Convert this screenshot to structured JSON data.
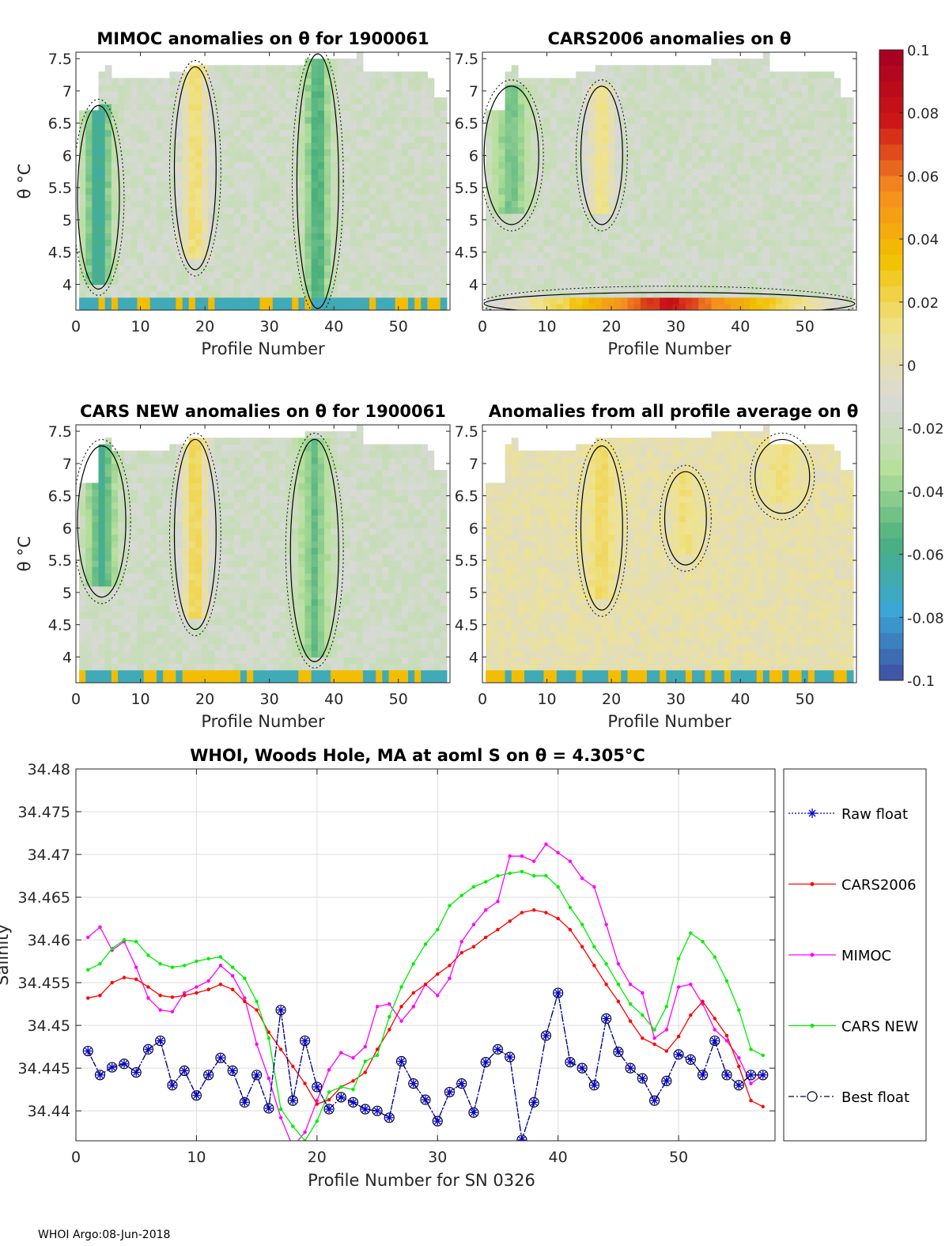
{
  "footer": "WHOI Argo:08-Jun-2018",
  "colorbar": {
    "ticks": [
      "0.1",
      "0.08",
      "0.06",
      "0.04",
      "0.02",
      "0",
      "-0.02",
      "-0.04",
      "-0.06",
      "-0.08",
      "-0.1"
    ],
    "range": [
      -0.1,
      0.1
    ],
    "colors": [
      "#3e4ea1",
      "#3aa7d7",
      "#4bb07c",
      "#b7e09b",
      "#d9d9d9",
      "#efe38c",
      "#f2c100",
      "#f68c1f",
      "#cc1417",
      "#a50021"
    ]
  },
  "chart_data": [
    {
      "type": "heatmap",
      "title": "MIMOC anomalies on θ  for 1900061",
      "xlabel": "Profile Number",
      "ylabel": "θ °C",
      "xlim": [
        0,
        58
      ],
      "ylim": [
        3.6,
        7.6
      ],
      "xticks": [
        "0",
        "10",
        "20",
        "30",
        "40",
        "50"
      ],
      "yticks": [
        "7.5",
        "7",
        "6.5",
        "6",
        "5.5",
        "5",
        "4.5",
        "4"
      ],
      "features": [
        {
          "kind": "negative-band",
          "x": [
            1,
            6
          ],
          "y": [
            4.0,
            6.7
          ],
          "value": -0.07
        },
        {
          "kind": "positive-band",
          "x": [
            16,
            21
          ],
          "y": [
            4.3,
            7.3
          ],
          "value": 0.02
        },
        {
          "kind": "negative-band",
          "x": [
            35,
            40
          ],
          "y": [
            3.7,
            7.5
          ],
          "value": -0.06
        }
      ]
    },
    {
      "type": "heatmap",
      "title": "CARS2006 anomalies on θ",
      "xlabel": "Profile Number",
      "ylabel": "θ °C",
      "xlim": [
        0,
        58
      ],
      "ylim": [
        3.6,
        7.6
      ],
      "xticks": [
        "0",
        "10",
        "20",
        "30",
        "40",
        "50"
      ],
      "yticks": [
        "7.5",
        "7",
        "6.5",
        "6",
        "5.5",
        "5",
        "4.5",
        "4"
      ],
      "features": [
        {
          "kind": "negative-band",
          "x": [
            1,
            8
          ],
          "y": [
            5.0,
            7.0
          ],
          "value": -0.05
        },
        {
          "kind": "positive-band",
          "x": [
            16,
            21
          ],
          "y": [
            5.0,
            7.0
          ],
          "value": 0.015
        },
        {
          "kind": "positive-bottom",
          "x": [
            1,
            57
          ],
          "y": [
            3.6,
            3.8
          ],
          "value": 0.08
        }
      ]
    },
    {
      "type": "heatmap",
      "title": "CARS NEW anomalies on θ for 1900061",
      "xlabel": "Profile Number",
      "ylabel": "θ °C",
      "xlim": [
        0,
        58
      ],
      "ylim": [
        3.6,
        7.6
      ],
      "xticks": [
        "0",
        "10",
        "20",
        "30",
        "40",
        "50"
      ],
      "yticks": [
        "7.5",
        "7",
        "6.5",
        "6",
        "5.5",
        "5",
        "4.5",
        "4"
      ],
      "features": [
        {
          "kind": "negative-band",
          "x": [
            1,
            7
          ],
          "y": [
            5.0,
            7.2
          ],
          "value": -0.06
        },
        {
          "kind": "positive-band",
          "x": [
            16,
            21
          ],
          "y": [
            4.5,
            7.3
          ],
          "value": 0.025
        },
        {
          "kind": "negative-band",
          "x": [
            34,
            40
          ],
          "y": [
            4.0,
            7.3
          ],
          "value": -0.05
        }
      ]
    },
    {
      "type": "heatmap",
      "title": "Anomalies from all profile average on θ",
      "xlabel": "Profile Number",
      "ylabel": "θ °C",
      "xlim": [
        0,
        58
      ],
      "ylim": [
        3.6,
        7.6
      ],
      "xticks": [
        "0",
        "10",
        "20",
        "30",
        "40",
        "50"
      ],
      "yticks": [
        "7.5",
        "7",
        "6.5",
        "6",
        "5.5",
        "5",
        "4.5",
        "4"
      ],
      "features": [
        {
          "kind": "positive-band",
          "x": [
            16,
            21
          ],
          "y": [
            4.8,
            7.2
          ],
          "value": 0.02
        },
        {
          "kind": "positive-band",
          "x": [
            29,
            34
          ],
          "y": [
            5.5,
            6.8
          ],
          "value": 0.015
        },
        {
          "kind": "positive-band",
          "x": [
            43,
            50
          ],
          "y": [
            6.3,
            7.3
          ],
          "value": 0.015
        }
      ]
    },
    {
      "type": "line",
      "title": "WHOI, Woods Hole, MA at aoml S on θ = 4.305°C",
      "xlabel": "Profile Number for SN 0326",
      "ylabel": "Salinity",
      "xlim": [
        0,
        58
      ],
      "ylim": [
        34.4365,
        34.48
      ],
      "xticks": [
        "0",
        "10",
        "20",
        "30",
        "40",
        "50"
      ],
      "yticks": [
        "34.48",
        "34.475",
        "34.47",
        "34.465",
        "34.46",
        "34.455",
        "34.45",
        "34.445",
        "34.44"
      ],
      "x": [
        1,
        2,
        3,
        4,
        5,
        6,
        7,
        8,
        9,
        10,
        11,
        12,
        13,
        14,
        15,
        16,
        17,
        18,
        19,
        20,
        21,
        22,
        23,
        24,
        25,
        26,
        27,
        28,
        29,
        30,
        31,
        32,
        33,
        34,
        35,
        36,
        37,
        38,
        39,
        40,
        41,
        42,
        43,
        44,
        45,
        46,
        47,
        48,
        49,
        50,
        51,
        52,
        53,
        54,
        55,
        56,
        57
      ],
      "series": [
        {
          "name": "Raw float",
          "color": "#0000cc",
          "marker": "asterisk",
          "dash": "dotted",
          "values": [
            34.447,
            34.4442,
            34.4451,
            34.4455,
            34.4445,
            34.4472,
            34.4482,
            34.443,
            34.4447,
            34.4418,
            34.4442,
            34.4462,
            34.4447,
            34.441,
            34.4442,
            34.4403,
            34.4518,
            34.4412,
            34.4482,
            34.4428,
            34.4402,
            34.4416,
            34.441,
            34.4402,
            34.44,
            34.4392,
            34.4458,
            34.4432,
            34.4413,
            34.4388,
            34.4422,
            34.4432,
            34.4398,
            34.4457,
            34.4472,
            34.4463,
            34.4366,
            34.441,
            34.4488,
            34.4538,
            34.4457,
            34.445,
            34.443,
            34.4508,
            34.4469,
            34.445,
            34.4438,
            34.4412,
            34.4435,
            34.4466,
            34.446,
            34.4442,
            34.4482,
            34.4442,
            34.443,
            34.4442,
            34.4442
          ]
        },
        {
          "name": "CARS2006",
          "color": "#ff0000",
          "marker": "dot",
          "dash": "solid",
          "values": [
            34.4532,
            34.4535,
            34.455,
            34.4556,
            34.4554,
            34.4545,
            34.4535,
            34.4533,
            34.4535,
            34.4538,
            34.4542,
            34.4548,
            34.4542,
            34.4528,
            34.4518,
            34.4492,
            34.4472,
            34.4452,
            34.4432,
            34.4408,
            34.4413,
            34.4428,
            34.4435,
            34.4445,
            34.4472,
            34.4495,
            34.4522,
            34.4538,
            34.4548,
            34.456,
            34.457,
            34.4585,
            34.4592,
            34.4603,
            34.4612,
            34.4622,
            34.4632,
            34.4635,
            34.4632,
            34.4625,
            34.4612,
            34.4592,
            34.457,
            34.4548,
            34.4528,
            34.4505,
            34.4485,
            34.4478,
            34.447,
            34.4487,
            34.4512,
            34.4528,
            34.4508,
            34.4488,
            34.4452,
            34.4412,
            34.4405
          ]
        },
        {
          "name": "MIMOC",
          "color": "#ff00ff",
          "marker": "dot",
          "dash": "solid",
          "values": [
            34.4603,
            34.4615,
            34.4588,
            34.4598,
            34.4568,
            34.4532,
            34.4518,
            34.4516,
            34.4538,
            34.4545,
            34.4552,
            34.457,
            34.4558,
            34.4532,
            34.4478,
            34.4438,
            34.4392,
            34.4358,
            34.4375,
            34.4412,
            34.4448,
            34.4468,
            34.4462,
            34.4475,
            34.4522,
            34.4525,
            34.4505,
            34.4522,
            34.4548,
            34.4535,
            34.4555,
            34.4598,
            34.4618,
            34.4635,
            34.4645,
            34.4698,
            34.4698,
            34.4692,
            34.4712,
            34.4702,
            34.4692,
            34.4672,
            34.4662,
            34.4618,
            34.4572,
            34.4548,
            34.4538,
            34.4485,
            34.4495,
            34.4545,
            34.4548,
            34.4525,
            34.4495,
            34.4482,
            34.4462,
            34.4432,
            34.4442
          ]
        },
        {
          "name": "CARS NEW",
          "color": "#00ee00",
          "marker": "dot",
          "dash": "solid",
          "values": [
            34.4565,
            34.4572,
            34.459,
            34.46,
            34.4598,
            34.4582,
            34.4572,
            34.4568,
            34.457,
            34.4575,
            34.4578,
            34.458,
            34.4568,
            34.4555,
            34.4528,
            34.4485,
            34.4402,
            34.4382,
            34.4365,
            34.4388,
            34.4422,
            34.4428,
            34.4425,
            34.4458,
            34.4465,
            34.451,
            34.4545,
            34.4572,
            34.4595,
            34.4612,
            34.464,
            34.4652,
            34.4662,
            34.4668,
            34.4675,
            34.4678,
            34.468,
            34.4675,
            34.4675,
            34.4662,
            34.4638,
            34.4618,
            34.4592,
            34.4572,
            34.4548,
            34.4525,
            34.4512,
            34.4495,
            34.4522,
            34.4578,
            34.4608,
            34.4598,
            34.458,
            34.4552,
            34.4518,
            34.4472,
            34.4465
          ]
        },
        {
          "name": "Best float",
          "color": "#000033",
          "marker": "circle",
          "dash": "dashdot",
          "values": [
            34.447,
            34.4442,
            34.4451,
            34.4455,
            34.4445,
            34.4472,
            34.4482,
            34.443,
            34.4447,
            34.4418,
            34.4442,
            34.4462,
            34.4447,
            34.441,
            34.4442,
            34.4403,
            34.4518,
            34.4412,
            34.4482,
            34.4428,
            34.4402,
            34.4416,
            34.441,
            34.4402,
            34.44,
            34.4392,
            34.4458,
            34.4432,
            34.4413,
            34.4388,
            34.4422,
            34.4432,
            34.4398,
            34.4457,
            34.4472,
            34.4463,
            34.4366,
            34.441,
            34.4488,
            34.4538,
            34.4457,
            34.445,
            34.443,
            34.4508,
            34.4469,
            34.445,
            34.4438,
            34.4412,
            34.4435,
            34.4466,
            34.446,
            34.4442,
            34.4482,
            34.4442,
            34.443,
            34.4442,
            34.4442
          ]
        }
      ]
    }
  ]
}
